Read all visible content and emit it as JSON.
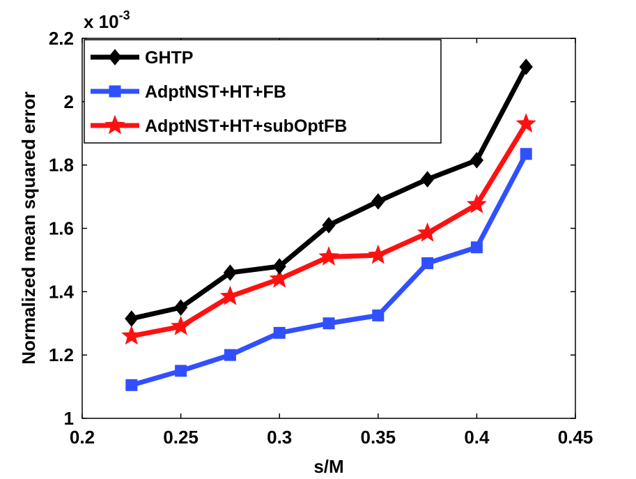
{
  "chart_data": {
    "type": "line",
    "title": "",
    "xlabel": "s/M",
    "ylabel": "Normalized mean squared error",
    "xlim": [
      0.2,
      0.45
    ],
    "ylim": [
      1.0,
      2.2
    ],
    "x_ticks": [
      0.2,
      0.25,
      0.3,
      0.35,
      0.4,
      0.45
    ],
    "x_tick_labels": [
      "0.2",
      "0.25",
      "0.3",
      "0.35",
      "0.4",
      "0.45"
    ],
    "y_ticks": [
      1.0,
      1.2,
      1.4,
      1.6,
      1.8,
      2.0,
      2.2
    ],
    "y_tick_labels": [
      "1",
      "1.2",
      "1.4",
      "1.6",
      "1.8",
      "2",
      "2.2"
    ],
    "y_scale_base": "x 10",
    "y_scale_exponent": "-3",
    "legend_position": "top-left",
    "grid": false,
    "x": [
      0.225,
      0.25,
      0.275,
      0.3,
      0.325,
      0.35,
      0.375,
      0.4,
      0.425
    ],
    "series": [
      {
        "name": "GHTP",
        "color": "#000000",
        "marker": "diamond",
        "values": [
          1.315,
          1.35,
          1.46,
          1.48,
          1.61,
          1.685,
          1.755,
          1.815,
          2.11
        ]
      },
      {
        "name": "AdptNST+HT+FB",
        "color": "#3050ff",
        "marker": "square",
        "values": [
          1.105,
          1.15,
          1.2,
          1.27,
          1.3,
          1.325,
          1.49,
          1.54,
          1.835
        ]
      },
      {
        "name": "AdptNST+HT+subOptFB",
        "color": "#ff1010",
        "marker": "star",
        "values": [
          1.26,
          1.29,
          1.385,
          1.44,
          1.51,
          1.515,
          1.585,
          1.675,
          1.93
        ]
      }
    ]
  }
}
